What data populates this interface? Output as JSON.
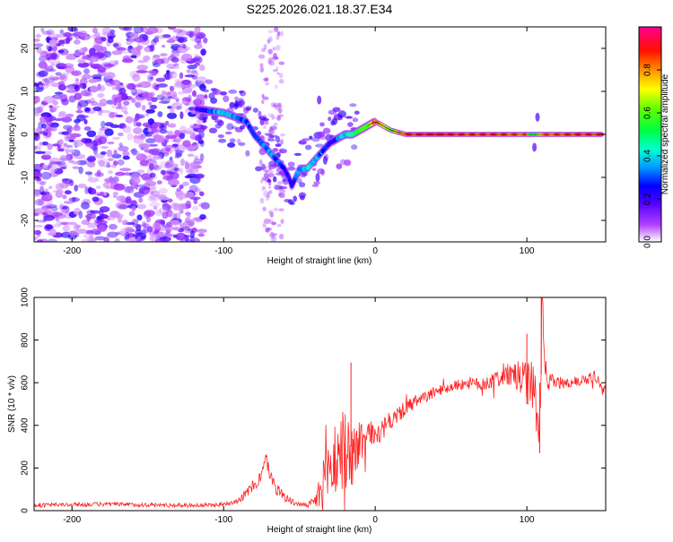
{
  "chart_data": [
    {
      "type": "heatmap",
      "title": "S225.2026.021.18.37.E34",
      "xlabel": "Height of straight line (km)",
      "ylabel": "Frequency (Hz)",
      "xlim": [
        -225,
        152
      ],
      "ylim": [
        -25,
        25
      ],
      "xticks": [
        -200,
        -100,
        0,
        100
      ],
      "yticks": [
        -20,
        -10,
        0,
        10,
        20
      ],
      "colorbar": {
        "label": "Normalized spectral amplitude",
        "range": [
          0,
          1
        ],
        "ticks": [
          0.0,
          0.2,
          0.4,
          0.6,
          0.8
        ],
        "colors": [
          "#ffffff",
          "#a000ff",
          "#0000ff",
          "#00c8ff",
          "#00ff80",
          "#60ff00",
          "#ffff00",
          "#ff8000",
          "#ff0000",
          "#ff0090"
        ]
      },
      "ridge": {
        "x": [
          -120,
          -110,
          -100,
          -92,
          -85,
          -80,
          -75,
          -70,
          -65,
          -60,
          -57,
          -55,
          -50,
          -45,
          -40,
          -35,
          -30,
          -25,
          -20,
          -15,
          -10,
          -5,
          0,
          5,
          10,
          20,
          40,
          60,
          80,
          100,
          105,
          110,
          130,
          150
        ],
        "y": [
          6,
          5.5,
          5,
          4,
          3,
          0,
          -2,
          -4,
          -6,
          -8,
          -10,
          -12,
          -8,
          -8,
          -6,
          -4,
          -2,
          -1,
          0,
          0,
          1,
          2,
          3,
          2,
          1,
          0,
          0,
          0,
          0,
          0,
          0,
          0,
          0,
          0
        ],
        "amplitude": [
          0.15,
          0.3,
          0.4,
          0.35,
          0.3,
          0.3,
          0.3,
          0.35,
          0.3,
          0.25,
          0.2,
          0.2,
          0.35,
          0.4,
          0.4,
          0.3,
          0.2,
          0.3,
          0.4,
          0.5,
          0.55,
          0.6,
          0.85,
          0.7,
          0.6,
          0.85,
          0.9,
          0.85,
          0.85,
          0.8,
          0.4,
          0.8,
          0.85,
          0.85
        ]
      }
    },
    {
      "type": "line",
      "xlabel": "Height of straight line (km)",
      "ylabel": "SNR (10 * v/v)",
      "xlim": [
        -225,
        152
      ],
      "ylim": [
        0,
        1000
      ],
      "xticks": [
        -200,
        -100,
        0,
        100
      ],
      "yticks": [
        0,
        200,
        400,
        600,
        800,
        1000
      ],
      "series": [
        {
          "name": "SNR",
          "color": "#ff2020",
          "x": [
            -225,
            -200,
            -180,
            -160,
            -140,
            -120,
            -110,
            -100,
            -90,
            -85,
            -80,
            -75,
            -72,
            -70,
            -65,
            -60,
            -55,
            -50,
            -45,
            -40,
            -35,
            -30,
            -25,
            -20,
            -15,
            -10,
            -5,
            0,
            5,
            10,
            20,
            30,
            40,
            50,
            60,
            70,
            80,
            90,
            95,
            100,
            105,
            108,
            110,
            112,
            115,
            120,
            130,
            140,
            145,
            150
          ],
          "y": [
            25,
            28,
            30,
            28,
            26,
            25,
            25,
            30,
            50,
            80,
            120,
            160,
            250,
            180,
            100,
            70,
            40,
            30,
            25,
            40,
            100,
            200,
            260,
            280,
            260,
            320,
            350,
            360,
            380,
            420,
            480,
            520,
            560,
            580,
            600,
            590,
            620,
            640,
            620,
            600,
            580,
            280,
            980,
            640,
            620,
            600,
            600,
            620,
            640,
            560
          ],
          "noise": [
            10,
            10,
            10,
            10,
            10,
            10,
            10,
            10,
            15,
            25,
            30,
            35,
            35,
            30,
            30,
            25,
            15,
            10,
            10,
            30,
            120,
            150,
            220,
            200,
            150,
            120,
            80,
            50,
            50,
            45,
            35,
            30,
            25,
            25,
            30,
            30,
            40,
            60,
            80,
            100,
            120,
            150,
            200,
            80,
            40,
            30,
            25,
            30,
            30,
            30
          ]
        }
      ]
    }
  ]
}
